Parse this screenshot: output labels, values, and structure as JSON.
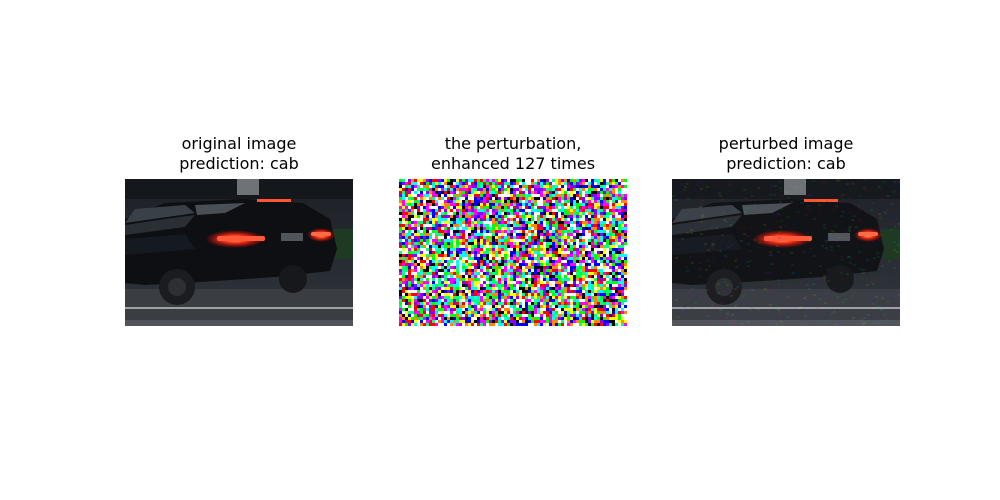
{
  "panels": [
    {
      "title_line1": "original image",
      "title_line2": "prediction: cab",
      "image_icon": "dark-suv-night-photo"
    },
    {
      "title_line1": "the perturbation,",
      "title_line2": "enhanced 127 times",
      "image_icon": "multicolor-noise-pattern"
    },
    {
      "title_line1": "perturbed image",
      "title_line2": "prediction: cab",
      "image_icon": "dark-suv-night-photo-with-noise"
    }
  ]
}
